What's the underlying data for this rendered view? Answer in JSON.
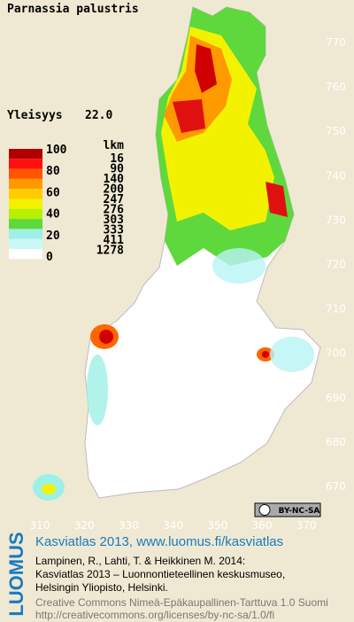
{
  "title": "Parnassia palustris",
  "frequency": {
    "label": "Yleisyys",
    "value": "22.0"
  },
  "legend": {
    "scale": [
      100,
      80,
      60,
      40,
      20,
      0
    ],
    "count_header": "lkm",
    "counts": [
      16,
      90,
      140,
      200,
      247,
      276,
      303,
      333,
      411,
      1278
    ]
  },
  "grid": {
    "north": [
      770,
      760,
      750,
      740,
      730,
      720,
      710,
      700,
      690,
      680,
      670
    ],
    "east": [
      310,
      320,
      330,
      340,
      350,
      360,
      370
    ]
  },
  "license_badge": "BY-NC-SA",
  "footer": {
    "logo": "LUOMUS",
    "link": "Kasviatlas 2013, www.luomus.fi/kasviatlas",
    "citation": [
      "Lampinen, R., Lahti, T. & Heikkinen M. 2014:",
      "Kasviatlas 2013 – Luonnontieteellinen keskusmuseo,",
      "Helsingin Yliopisto, Helsinki."
    ],
    "license": [
      "Creative Commons Nimeä-Epäkaupallinen-Tarttuva 1.0 Suomi",
      "http://creativecommons.org/licenses/by-nc-sa/1.0/fi"
    ]
  }
}
